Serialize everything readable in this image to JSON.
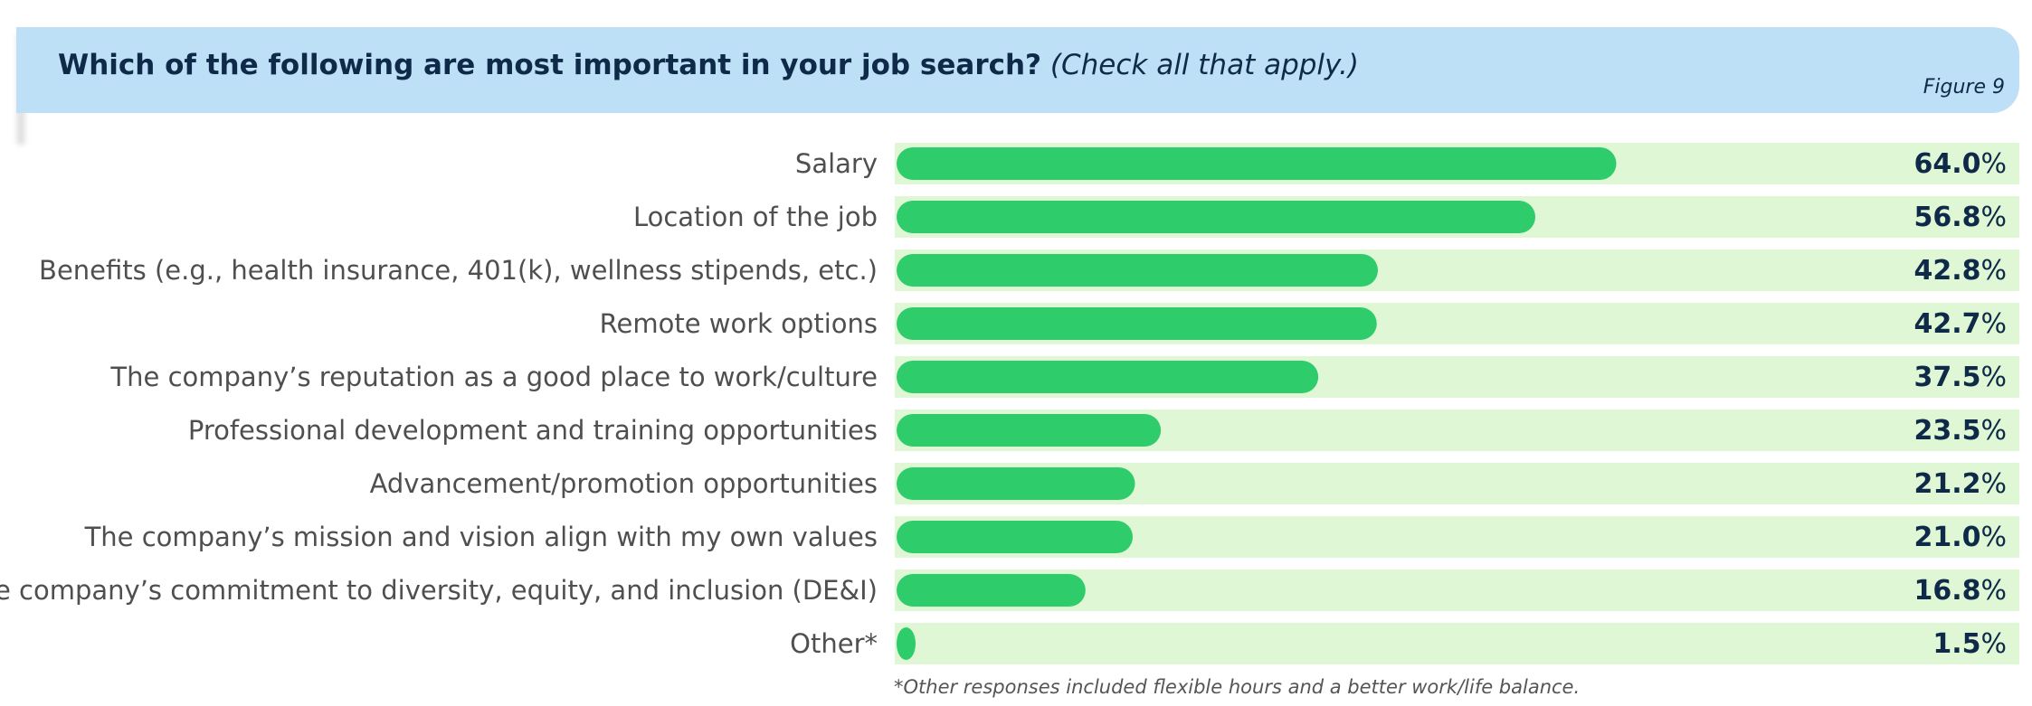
{
  "header": {
    "title": "Which of the following are most important in your job search?",
    "subtitle": "(Check all that apply.)",
    "figure_label": "Figure 9"
  },
  "footnote": "*Other responses included flexible hours and a better work/life balance.",
  "colors": {
    "bar": "#2ecc6b",
    "track": "#e0f7d6",
    "header_bg": "#bde0f7",
    "title": "#0f2a48",
    "label": "#4f4f4f"
  },
  "chart_data": {
    "type": "bar",
    "orientation": "horizontal",
    "unit": "%",
    "xlim": [
      0,
      100
    ],
    "categories": [
      "Salary",
      "Location of the job",
      "Benefits (e.g., health insurance, 401(k), wellness stipends, etc.)",
      "Remote work options",
      "The company’s reputation as a good place to work/culture",
      "Professional development and training opportunities",
      "Advancement/promotion opportunities",
      "The company’s mission and vision align with my own values",
      "The company’s commitment to diversity, equity, and inclusion (DE&I)",
      "Other*"
    ],
    "values": [
      64.0,
      56.8,
      42.8,
      42.7,
      37.5,
      23.5,
      21.2,
      21.0,
      16.8,
      1.5
    ],
    "labels": [
      "64.0",
      "56.8",
      "42.8",
      "42.7",
      "37.5",
      "23.5",
      "21.2",
      "21.0",
      "16.8",
      "1.5"
    ]
  }
}
